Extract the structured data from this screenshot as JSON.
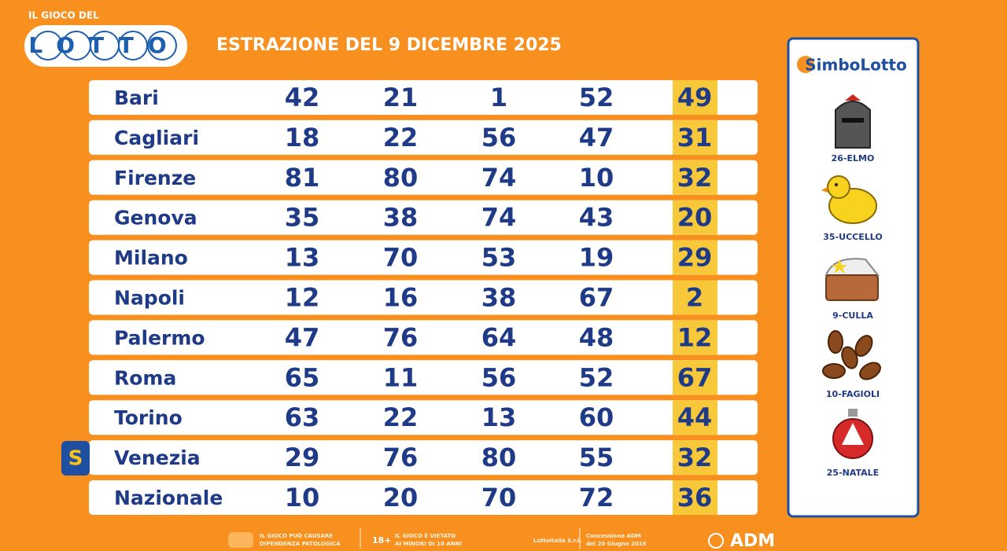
{
  "logo": {
    "top": "IL GIOCO DEL",
    "word": "LOTTO"
  },
  "title": "ESTRAZIONE DEL 9 DICEMBRE 2025",
  "table": {
    "rows": [
      [
        "Bari",
        42,
        21,
        1,
        52,
        49
      ],
      [
        "Cagliari",
        18,
        22,
        56,
        47,
        31
      ],
      [
        "Firenze",
        81,
        80,
        74,
        10,
        32
      ],
      [
        "Genova",
        35,
        38,
        74,
        43,
        20
      ],
      [
        "Milano",
        13,
        70,
        53,
        19,
        29
      ],
      [
        "Napoli",
        12,
        16,
        38,
        67,
        2
      ],
      [
        "Palermo",
        47,
        76,
        64,
        48,
        12
      ],
      [
        "Roma",
        65,
        11,
        56,
        52,
        67
      ],
      [
        "Torino",
        63,
        22,
        13,
        60,
        44
      ],
      [
        "Venezia",
        29,
        76,
        80,
        55,
        32
      ],
      [
        "Nazionale",
        10,
        20,
        70,
        72,
        36
      ]
    ]
  },
  "badge": "S",
  "simbolotto": {
    "title": "SimboLotto",
    "symbols": [
      "26-ELMO",
      "35-UCCELLO",
      "9-CULLA",
      "10-FAGIOLI",
      "25-NATALE"
    ]
  },
  "footer": {
    "warning": [
      "IL GIOCO PUÒ CAUSARE",
      "DIPENDENZA PATOLOGICA"
    ],
    "age": "18+",
    "minors": [
      "IL GIOCO È VIETATO",
      "AI MINORI DI 18 ANNI"
    ],
    "operator": "Lottoitalia S.r.l.",
    "concession": [
      "Concessione ADM",
      "del 20 Giugno 2016"
    ],
    "adm": "ADM"
  }
}
